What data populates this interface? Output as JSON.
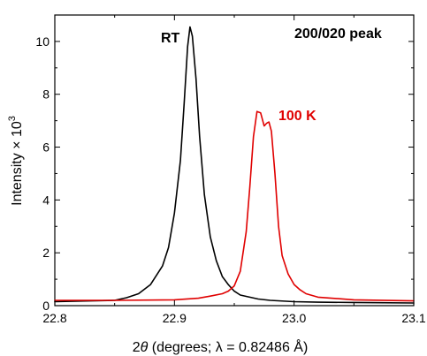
{
  "chart_data": {
    "type": "line",
    "title": "",
    "xlabel": {
      "prefix": "2",
      "symbol": "θ",
      "rest": " (degrees; λ = 0.82486 Å)"
    },
    "ylabel": {
      "base": "Intensity × 10",
      "exponent": "3"
    },
    "xlim": [
      22.8,
      23.1
    ],
    "ylim": [
      0,
      11
    ],
    "x_ticks": [
      {
        "value": 22.8,
        "label": "22.8"
      },
      {
        "value": 22.9,
        "label": "22.9"
      },
      {
        "value": 23.0,
        "label": "23.0"
      },
      {
        "value": 23.1,
        "label": "23.1"
      }
    ],
    "y_ticks": [
      {
        "value": 0,
        "label": "0"
      },
      {
        "value": 2,
        "label": "2"
      },
      {
        "value": 4,
        "label": "4"
      },
      {
        "value": 6,
        "label": "6"
      },
      {
        "value": 8,
        "label": "8"
      },
      {
        "value": 10,
        "label": "10"
      }
    ],
    "grid": false,
    "series": [
      {
        "name": "RT",
        "color": "#000000",
        "x": [
          22.8,
          22.83,
          22.85,
          22.86,
          22.87,
          22.88,
          22.89,
          22.895,
          22.9,
          22.905,
          22.908,
          22.911,
          22.913,
          22.915,
          22.918,
          22.921,
          22.925,
          22.93,
          22.935,
          22.94,
          22.945,
          22.95,
          22.955,
          22.96,
          22.97,
          22.98,
          23.0,
          23.02,
          23.05,
          23.1
        ],
        "y": [
          0.15,
          0.18,
          0.2,
          0.3,
          0.45,
          0.8,
          1.5,
          2.2,
          3.5,
          5.5,
          7.6,
          9.8,
          10.55,
          10.2,
          8.6,
          6.4,
          4.2,
          2.6,
          1.7,
          1.1,
          0.8,
          0.55,
          0.4,
          0.35,
          0.25,
          0.2,
          0.15,
          0.13,
          0.12,
          0.1
        ]
      },
      {
        "name": "100 K",
        "color": "#e00000",
        "x": [
          22.8,
          22.85,
          22.9,
          22.92,
          22.93,
          22.94,
          22.945,
          22.95,
          22.955,
          22.96,
          22.963,
          22.966,
          22.969,
          22.972,
          22.975,
          22.977,
          22.979,
          22.981,
          22.984,
          22.987,
          22.99,
          22.995,
          23.0,
          23.005,
          23.01,
          23.02,
          23.05,
          23.1
        ],
        "y": [
          0.2,
          0.2,
          0.22,
          0.28,
          0.36,
          0.45,
          0.55,
          0.75,
          1.3,
          2.8,
          4.5,
          6.4,
          7.35,
          7.3,
          6.8,
          6.9,
          6.95,
          6.6,
          5.0,
          3.0,
          1.9,
          1.2,
          0.8,
          0.6,
          0.45,
          0.32,
          0.22,
          0.18
        ]
      }
    ],
    "annotations": [
      {
        "text": "RT",
        "color": "#000000"
      },
      {
        "text": "100 K",
        "color": "#e00000"
      },
      {
        "text": "200/020 peak",
        "color": "#000000"
      }
    ],
    "legend": "none"
  }
}
